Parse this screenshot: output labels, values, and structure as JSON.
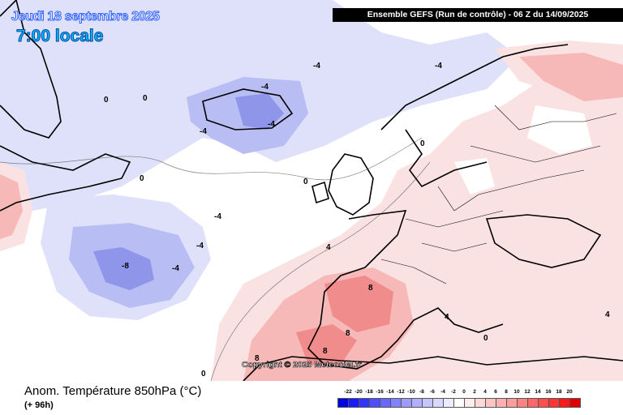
{
  "header": {
    "date": "Jeudi 18 septembre 2025",
    "local_time": "7:00 locale",
    "run_info": "Ensemble GEFS  (Run de contrôle)  -  06 Z du 14/09/2025"
  },
  "map": {
    "copyright": "Copyright © 2025 Meteociel.fr",
    "contour_labels": [
      "0",
      "-4",
      "-8",
      "4",
      "8"
    ]
  },
  "footer": {
    "variable": "Anom. Température 850hPa (°C)",
    "lead_time": "(+ 96h)"
  },
  "legend": {
    "ticks": [
      "-22",
      "-20",
      "-18",
      "-16",
      "-14",
      "-12",
      "-10",
      "-8",
      "-6",
      "-4",
      "-2",
      "0",
      "2",
      "4",
      "6",
      "8",
      "10",
      "12",
      "14",
      "16",
      "18",
      "20"
    ],
    "colors": [
      "#0000e0",
      "#1a1aff",
      "#3434ff",
      "#4e4eff",
      "#6868ff",
      "#8282ff",
      "#9c9cff",
      "#b0b0ff",
      "#c4c4ff",
      "#d8d8ff",
      "#ececff",
      "#ffffff",
      "#ffecec",
      "#ffd8d8",
      "#ffc4c4",
      "#ffb0b0",
      "#ff9c9c",
      "#ff8282",
      "#ff6868",
      "#ff4e4e",
      "#ff3434",
      "#ff1a1a",
      "#e00000"
    ]
  },
  "colors": {
    "cold_light": "#dfe1fb",
    "cold_mid": "#b8bdf4",
    "cold_strong": "#8f95e8",
    "warm_light": "#fbe2e2",
    "warm_mid": "#f7b8b8",
    "warm_strong": "#f08c8c",
    "land_border": "#000000"
  }
}
